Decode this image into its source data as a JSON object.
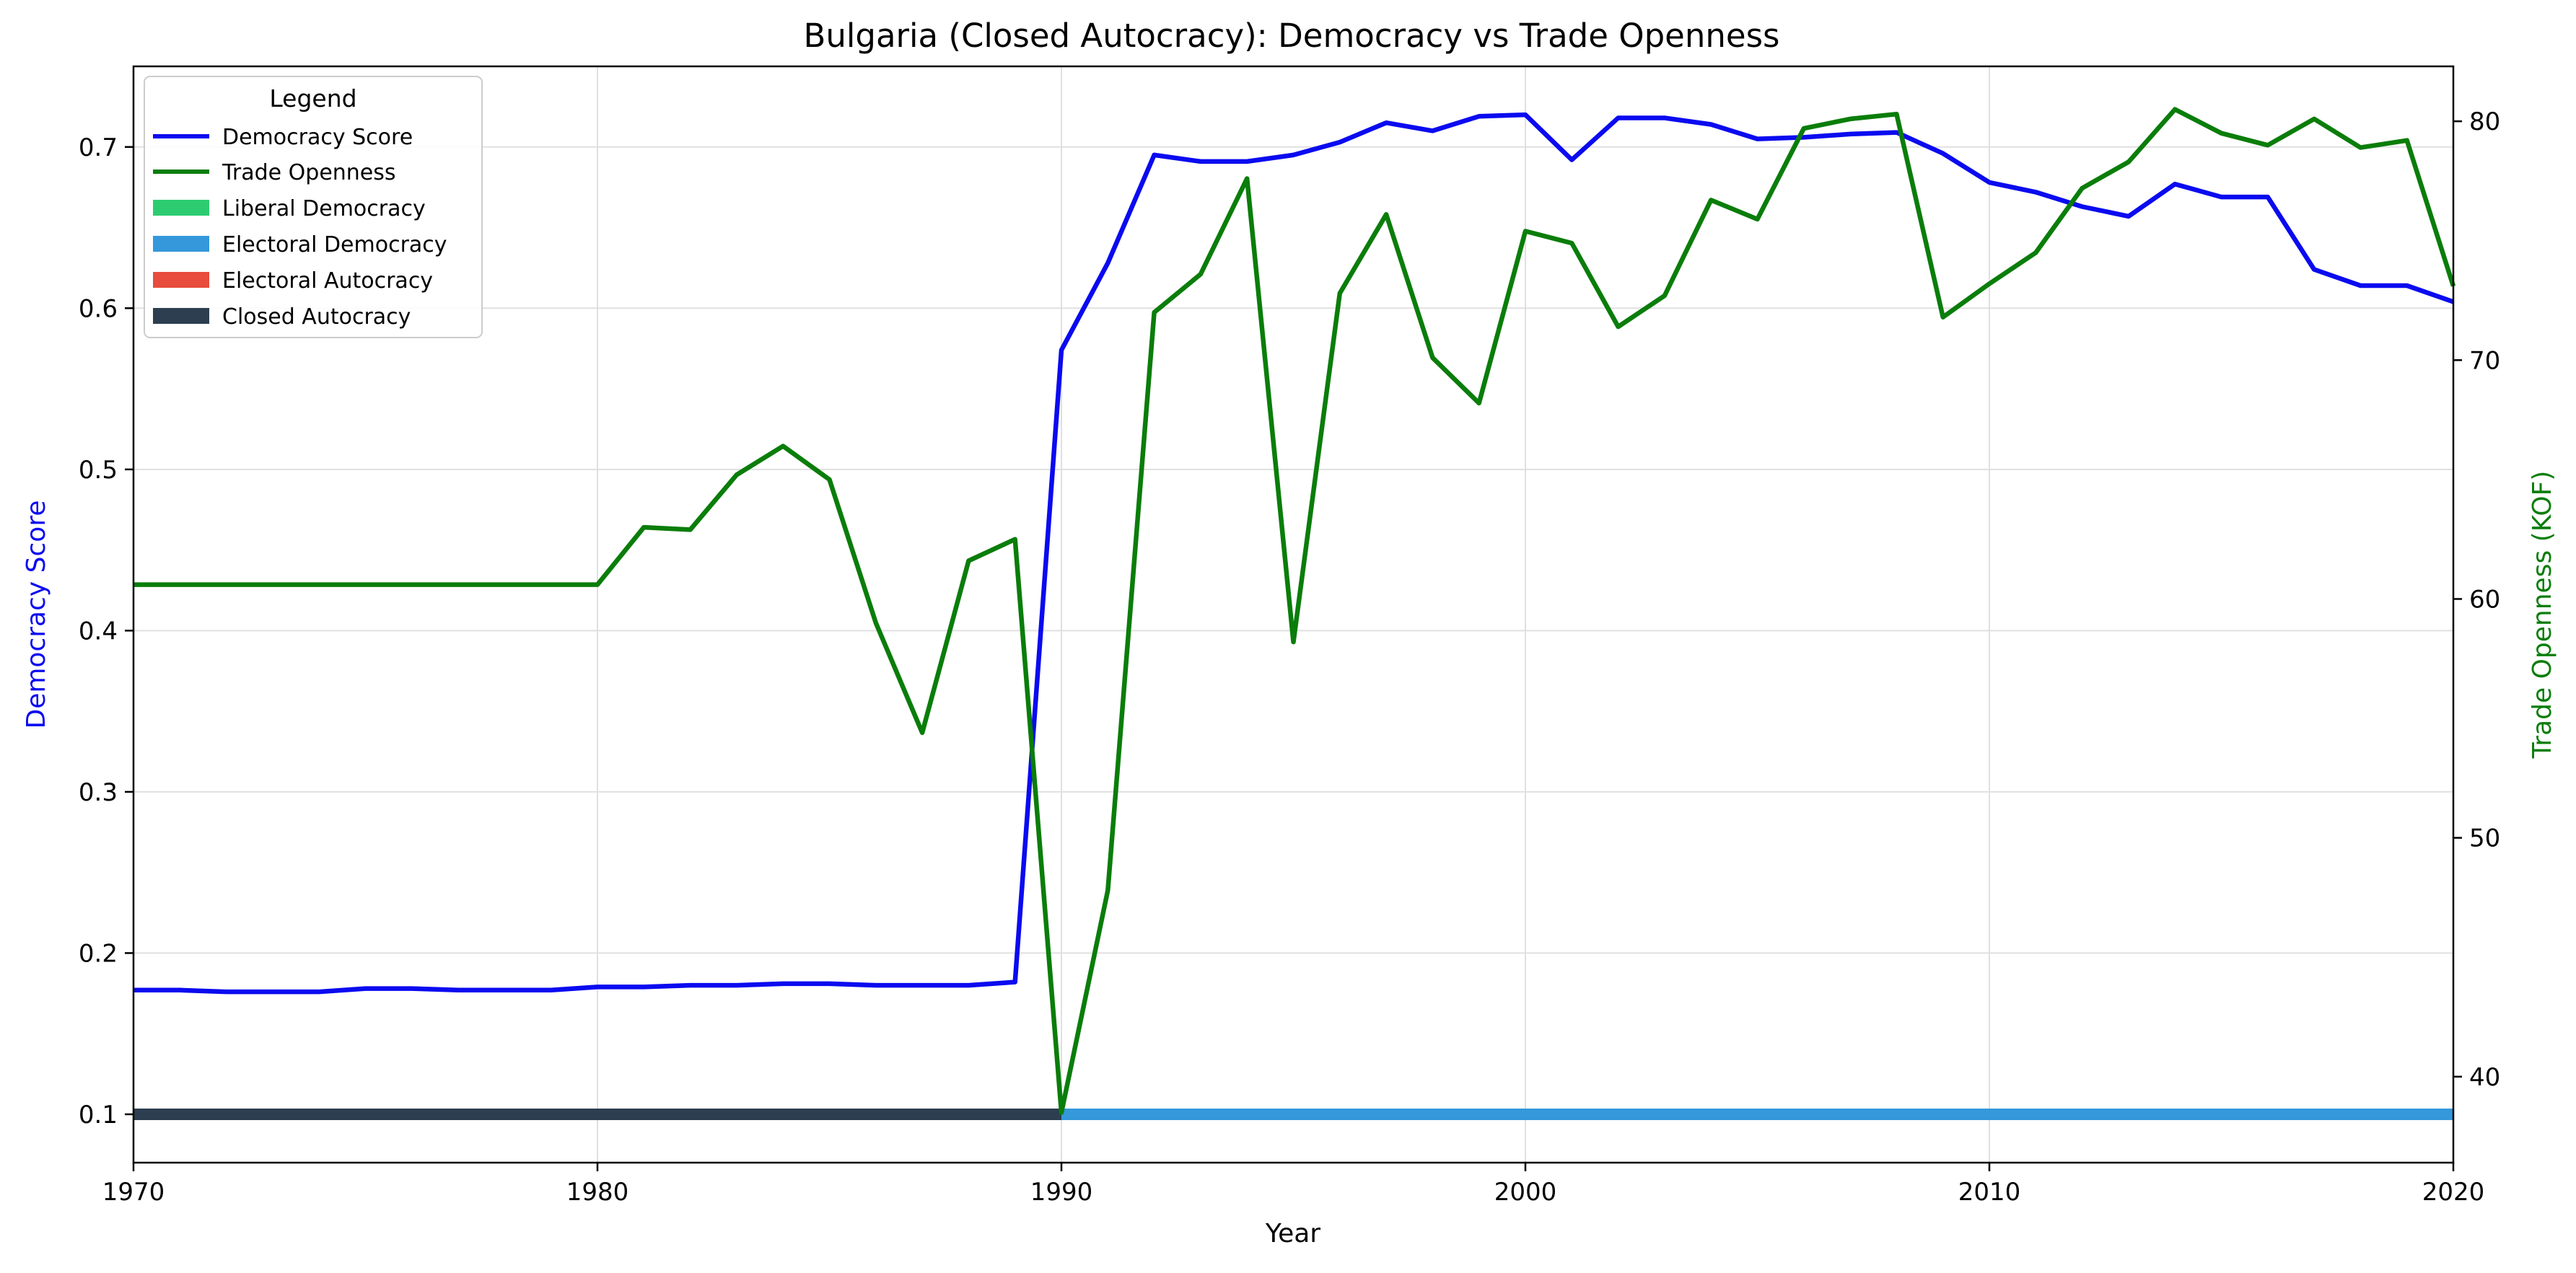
{
  "chart_data": {
    "type": "line",
    "title": "Bulgaria (Closed Autocracy): Democracy vs Trade Openness",
    "xlabel": "Year",
    "ylabel_left": "Democracy Score",
    "ylabel_right": "Trade Openness (KOF)",
    "xlim": [
      1970,
      2020
    ],
    "ylim_left": [
      0.07,
      0.75
    ],
    "ylim_right": [
      36.4,
      82.3
    ],
    "x_ticks": [
      1970,
      1980,
      1990,
      2000,
      2010,
      2020
    ],
    "y_left_ticks": [
      0.1,
      0.2,
      0.3,
      0.4,
      0.5,
      0.6,
      0.7
    ],
    "y_right_ticks": [
      40,
      50,
      60,
      70,
      80
    ],
    "grid": true,
    "legend": {
      "title": "Legend",
      "placement": "upper-left",
      "entries": [
        "Democracy Score",
        "Trade Openness",
        "Liberal Democracy",
        "Electoral Democracy",
        "Electoral Autocracy",
        "Closed Autocracy"
      ]
    },
    "colors": {
      "democracy": "#0a0af0",
      "trade": "#0a7d0a",
      "liberal_democracy": "#2ecc71",
      "electoral_democracy": "#3498db",
      "electoral_autocracy": "#e74c3c",
      "closed_autocracy": "#2c3e50"
    },
    "x": [
      1970,
      1971,
      1972,
      1973,
      1974,
      1975,
      1976,
      1977,
      1978,
      1979,
      1980,
      1981,
      1982,
      1983,
      1984,
      1985,
      1986,
      1987,
      1988,
      1989,
      1990,
      1991,
      1992,
      1993,
      1994,
      1995,
      1996,
      1997,
      1998,
      1999,
      2000,
      2001,
      2002,
      2003,
      2004,
      2005,
      2006,
      2007,
      2008,
      2009,
      2010,
      2011,
      2012,
      2013,
      2014,
      2015,
      2016,
      2017,
      2018,
      2019,
      2020
    ],
    "series": [
      {
        "name": "Democracy Score",
        "axis": "left",
        "values": [
          0.177,
          0.177,
          0.176,
          0.176,
          0.176,
          0.178,
          0.178,
          0.177,
          0.177,
          0.177,
          0.179,
          0.179,
          0.18,
          0.18,
          0.181,
          0.181,
          0.18,
          0.18,
          0.18,
          0.182,
          0.574,
          0.628,
          0.695,
          0.691,
          0.691,
          0.695,
          0.703,
          0.715,
          0.71,
          0.719,
          0.72,
          0.692,
          0.718,
          0.718,
          0.714,
          0.705,
          0.706,
          0.708,
          0.709,
          0.696,
          0.678,
          0.672,
          0.663,
          0.657,
          0.677,
          0.669,
          0.669,
          0.624,
          0.614,
          0.614,
          0.604
        ]
      },
      {
        "name": "Trade Openness",
        "axis": "right",
        "values": [
          60.6,
          60.6,
          60.6,
          60.6,
          60.6,
          60.6,
          60.6,
          60.6,
          60.6,
          60.6,
          60.6,
          63.0,
          62.9,
          65.2,
          66.4,
          65.0,
          59.0,
          54.4,
          61.6,
          62.5,
          38.5,
          47.8,
          72.0,
          73.6,
          77.6,
          58.2,
          72.8,
          76.1,
          70.1,
          68.2,
          75.4,
          74.9,
          71.4,
          72.7,
          76.7,
          75.9,
          79.7,
          80.1,
          80.3,
          71.8,
          73.2,
          74.5,
          77.2,
          78.3,
          80.5,
          79.5,
          79.0,
          80.1,
          78.9,
          79.2,
          73.1
        ]
      }
    ],
    "regime_band": {
      "level": 0.1,
      "segments": [
        {
          "regime": "Closed Autocracy",
          "from": 1970,
          "to": 1990
        },
        {
          "regime": "Electoral Democracy",
          "from": 1990,
          "to": 2020
        }
      ]
    }
  }
}
